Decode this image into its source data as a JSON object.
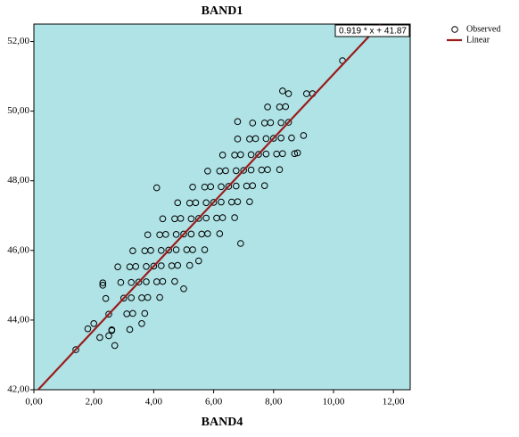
{
  "chart_data": {
    "type": "scatter",
    "title": "BAND1",
    "x_label": "BAND4",
    "plot_background": "#b0e3e6",
    "x": [
      2.7,
      2.6,
      2.5,
      2.4,
      2.3,
      3.2,
      3.1,
      3.0,
      2.9,
      2.8,
      3.7,
      3.6,
      3.5,
      3.4,
      3.3,
      4.2,
      4.1,
      4.0,
      3.9,
      3.8,
      4.7,
      4.6,
      4.5,
      4.4,
      4.3,
      5.2,
      5.1,
      5.0,
      4.9,
      4.8,
      5.7,
      5.6,
      5.5,
      5.4,
      5.3,
      6.2,
      6.1,
      6.0,
      5.9,
      5.8,
      6.7,
      6.6,
      6.5,
      6.4,
      6.3,
      7.2,
      7.1,
      7.0,
      6.9,
      6.8,
      7.7,
      7.6,
      7.5,
      7.4,
      7.3,
      8.2,
      8.1,
      8.0,
      7.9,
      7.8,
      8.7,
      8.6,
      8.5,
      8.4,
      8.3,
      3.3,
      3.25,
      3.25,
      3.2,
      3.8,
      3.75,
      3.75,
      3.7,
      4.3,
      4.25,
      4.25,
      4.2,
      4.8,
      4.75,
      4.75,
      4.7,
      5.3,
      5.25,
      5.25,
      5.2,
      5.8,
      5.75,
      5.75,
      5.7,
      6.3,
      6.25,
      6.25,
      6.2,
      6.8,
      6.75,
      6.75,
      6.7,
      7.3,
      7.25,
      7.25,
      7.2,
      7.8,
      7.75,
      7.75,
      7.7,
      8.3,
      8.25,
      8.25,
      8.2,
      1.4,
      10.3,
      9.3,
      9.1,
      9.0,
      8.8,
      2.0,
      2.2,
      2.5,
      2.6,
      5.0,
      3.6,
      5.5,
      6.9,
      1.8,
      4.1,
      6.8,
      8.5,
      2.3
    ],
    "series": [
      {
        "name": "Observed",
        "color": "#000000",
        "values": [
          43.27,
          43.72,
          44.17,
          44.62,
          45.07,
          43.73,
          44.18,
          44.63,
          45.08,
          45.53,
          44.19,
          44.64,
          45.09,
          45.54,
          45.99,
          44.65,
          45.1,
          45.55,
          46.0,
          46.45,
          45.11,
          45.56,
          46.01,
          46.46,
          46.91,
          45.57,
          46.02,
          46.47,
          46.92,
          47.37,
          46.02,
          46.47,
          46.92,
          47.37,
          47.82,
          46.48,
          46.93,
          47.38,
          47.83,
          48.28,
          46.94,
          47.39,
          47.84,
          48.29,
          48.74,
          47.4,
          47.85,
          48.3,
          48.75,
          49.2,
          47.86,
          48.31,
          48.76,
          49.21,
          49.66,
          48.32,
          48.77,
          49.22,
          49.67,
          50.12,
          48.78,
          49.23,
          49.68,
          50.13,
          50.58,
          44.19,
          44.64,
          45.08,
          45.53,
          44.65,
          45.1,
          45.54,
          45.99,
          45.11,
          45.56,
          46.0,
          46.45,
          45.57,
          46.02,
          46.46,
          46.91,
          46.02,
          46.47,
          46.91,
          47.36,
          46.48,
          46.93,
          47.37,
          47.82,
          46.94,
          47.39,
          47.83,
          48.28,
          47.4,
          47.85,
          48.29,
          48.74,
          47.86,
          48.31,
          48.75,
          49.2,
          48.32,
          48.77,
          49.21,
          49.66,
          48.78,
          49.23,
          49.67,
          50.12,
          43.15,
          51.45,
          50.5,
          50.5,
          49.3,
          48.8,
          43.9,
          43.5,
          43.55,
          43.7,
          44.9,
          43.9,
          45.7,
          46.2,
          43.75,
          47.8,
          49.7,
          50.5,
          45.0
        ]
      }
    ],
    "fit": {
      "name": "Linear",
      "color": "#9b1c1c",
      "slope": 0.919,
      "intercept": 41.87,
      "label": "0.919 * x + 41.87"
    },
    "xlim": [
      0,
      12.56
    ],
    "ylim": [
      42,
      52.5
    ],
    "xticks": [
      {
        "value": 0,
        "label": "0,00"
      },
      {
        "value": 2,
        "label": "2,00"
      },
      {
        "value": 4,
        "label": "4,00"
      },
      {
        "value": 6,
        "label": "6,00"
      },
      {
        "value": 8,
        "label": "8,00"
      },
      {
        "value": 10,
        "label": "10,00"
      },
      {
        "value": 12,
        "label": "12,00"
      }
    ],
    "yticks": [
      {
        "value": 42,
        "label": "42,00"
      },
      {
        "value": 44,
        "label": "44,00"
      },
      {
        "value": 46,
        "label": "46,00"
      },
      {
        "value": 48,
        "label": "48,00"
      },
      {
        "value": 50,
        "label": "50,00"
      },
      {
        "value": 52,
        "label": "52,00"
      }
    ],
    "legend": "right"
  }
}
